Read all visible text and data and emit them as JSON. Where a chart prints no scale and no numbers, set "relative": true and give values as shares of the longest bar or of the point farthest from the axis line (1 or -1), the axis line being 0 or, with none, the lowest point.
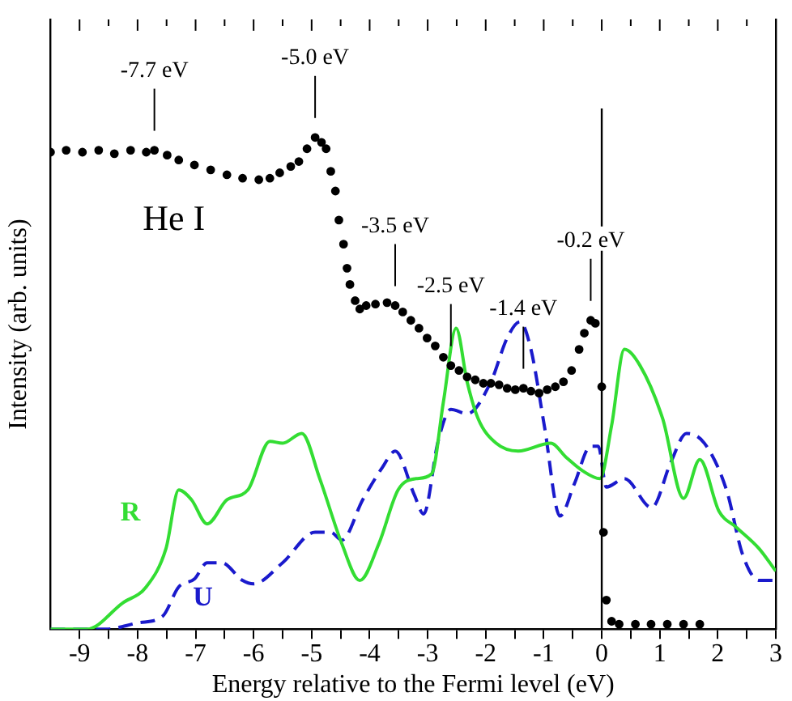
{
  "chart_data": {
    "type": "line",
    "relative": true,
    "xlabel": "Energy relative to the Fermi level (eV)",
    "ylabel": "Intensity (arb. units)",
    "xlim": [
      -9.5,
      3
    ],
    "xticks": [
      -9,
      {
        "value": -8.5,
        "label": null
      },
      -8,
      {
        "value": -7.5,
        "label": null
      },
      -7,
      {
        "value": -6.5,
        "label": null
      },
      -6,
      {
        "value": -5.5,
        "label": null
      },
      -5,
      {
        "value": -4.5,
        "label": null
      },
      -4,
      {
        "value": -3.5,
        "label": null
      },
      -3,
      {
        "value": -2.5,
        "label": null
      },
      -2,
      {
        "value": -1.5,
        "label": null
      },
      -1,
      {
        "value": -0.5,
        "label": null
      },
      0,
      {
        "value": 0.5,
        "label": null
      },
      1,
      {
        "value": 1.5,
        "label": null
      },
      2,
      {
        "value": 2.5,
        "label": null
      },
      3
    ],
    "grid": false,
    "legend": false,
    "ref_lines": [
      {
        "axis": "x",
        "value": 0,
        "color": "#000000"
      }
    ],
    "annotations": [
      {
        "text": "-7.7 eV",
        "x": -7.71,
        "y": 0.974
      },
      {
        "text": "-5.0 eV",
        "x": -4.94,
        "y": 1.0
      },
      {
        "text": "-3.5 eV",
        "x": -3.56,
        "y": 0.658
      },
      {
        "text": "-2.5 eV",
        "x": -2.6,
        "y": 0.536
      },
      {
        "text": "-1.4 eV",
        "x": -1.35,
        "y": 0.49
      },
      {
        "text": "-0.2 eV",
        "x": -0.19,
        "y": 0.628
      }
    ],
    "series": [
      {
        "name": "He I",
        "type": "scatter",
        "marker": "circle",
        "color": "#000000",
        "x": [
          -9.5,
          -9.23,
          -8.95,
          -8.67,
          -8.4,
          -8.12,
          -7.85,
          -7.71,
          -7.49,
          -7.29,
          -7.02,
          -6.74,
          -6.46,
          -6.19,
          -5.91,
          -5.72,
          -5.55,
          -5.36,
          -5.22,
          -5.08,
          -4.94,
          -4.83,
          -4.75,
          -4.67,
          -4.59,
          -4.53,
          -4.45,
          -4.39,
          -4.34,
          -4.25,
          -4.17,
          -4.06,
          -3.9,
          -3.7,
          -3.56,
          -3.43,
          -3.29,
          -3.15,
          -3.01,
          -2.87,
          -2.73,
          -2.6,
          -2.46,
          -2.32,
          -2.18,
          -2.04,
          -1.91,
          -1.77,
          -1.63,
          -1.49,
          -1.35,
          -1.22,
          -1.08,
          -0.94,
          -0.8,
          -0.66,
          -0.52,
          -0.39,
          -0.3,
          -0.19,
          -0.11,
          0,
          0.03,
          0.08,
          0.17,
          0.3,
          0.58,
          0.85,
          1.13,
          1.41,
          1.69
        ],
        "values": [
          0.97,
          0.974,
          0.97,
          0.974,
          0.967,
          0.974,
          0.97,
          0.974,
          0.964,
          0.954,
          0.944,
          0.934,
          0.924,
          0.917,
          0.914,
          0.917,
          0.928,
          0.941,
          0.951,
          0.977,
          1.0,
          0.99,
          0.977,
          0.931,
          0.891,
          0.832,
          0.783,
          0.734,
          0.701,
          0.668,
          0.651,
          0.658,
          0.661,
          0.664,
          0.658,
          0.645,
          0.628,
          0.612,
          0.592,
          0.576,
          0.553,
          0.536,
          0.526,
          0.513,
          0.507,
          0.5,
          0.5,
          0.497,
          0.49,
          0.487,
          0.49,
          0.484,
          0.48,
          0.487,
          0.493,
          0.503,
          0.526,
          0.569,
          0.602,
          0.628,
          0.622,
          0.493,
          0.197,
          0.059,
          0.016,
          0.01,
          0.01,
          0.01,
          0.01,
          0.01,
          0.01
        ]
      },
      {
        "name": "R",
        "type": "line",
        "marker": "none",
        "line_style": "solid",
        "color": "#33dd33",
        "x": [
          -9.5,
          -8.87,
          -8.26,
          -7.85,
          -7.51,
          -7.29,
          -7.07,
          -6.8,
          -6.46,
          -6.1,
          -5.72,
          -5.5,
          -5.17,
          -4.86,
          -4.48,
          -4.17,
          -3.84,
          -3.51,
          -3.2,
          -2.93,
          -2.73,
          -2.51,
          -2.32,
          -2.13,
          -1.82,
          -1.44,
          -0.88,
          -0.61,
          -0.33,
          -0.03,
          0.17,
          0.39,
          0.66,
          1.05,
          1.41,
          1.69,
          2.02,
          2.32,
          2.71,
          3.0
        ],
        "values": [
          0,
          0,
          0.053,
          0.086,
          0.164,
          0.283,
          0.263,
          0.214,
          0.263,
          0.283,
          0.382,
          0.378,
          0.398,
          0.306,
          0.174,
          0.099,
          0.174,
          0.283,
          0.306,
          0.316,
          0.461,
          0.612,
          0.503,
          0.428,
          0.378,
          0.362,
          0.378,
          0.349,
          0.322,
          0.306,
          0.414,
          0.569,
          0.536,
          0.428,
          0.266,
          0.345,
          0.24,
          0.207,
          0.164,
          0.118
        ]
      },
      {
        "name": "U",
        "type": "line",
        "marker": "none",
        "line_style": "dashed",
        "color": "#1a1acc",
        "x": [
          -9.5,
          -8.54,
          -7.98,
          -7.57,
          -7.29,
          -7.02,
          -6.8,
          -6.55,
          -6.19,
          -6.0,
          -5.5,
          -4.94,
          -4.67,
          -4.48,
          -4.12,
          -3.78,
          -3.56,
          -3.23,
          -3.07,
          -2.82,
          -2.6,
          -2.32,
          -1.91,
          -1.63,
          -1.41,
          -1.22,
          -0.99,
          -0.72,
          -0.47,
          -0.19,
          -0.06,
          0.08,
          0.39,
          0.86,
          1.19,
          1.46,
          1.77,
          2.15,
          2.43,
          2.71,
          3.0
        ],
        "values": [
          0,
          0,
          0.013,
          0.026,
          0.086,
          0.102,
          0.135,
          0.135,
          0.099,
          0.092,
          0.135,
          0.197,
          0.197,
          0.181,
          0.263,
          0.329,
          0.362,
          0.273,
          0.234,
          0.382,
          0.447,
          0.438,
          0.503,
          0.592,
          0.625,
          0.569,
          0.414,
          0.23,
          0.296,
          0.372,
          0.372,
          0.289,
          0.306,
          0.247,
          0.339,
          0.398,
          0.378,
          0.283,
          0.151,
          0.099,
          0.099
        ]
      }
    ]
  }
}
